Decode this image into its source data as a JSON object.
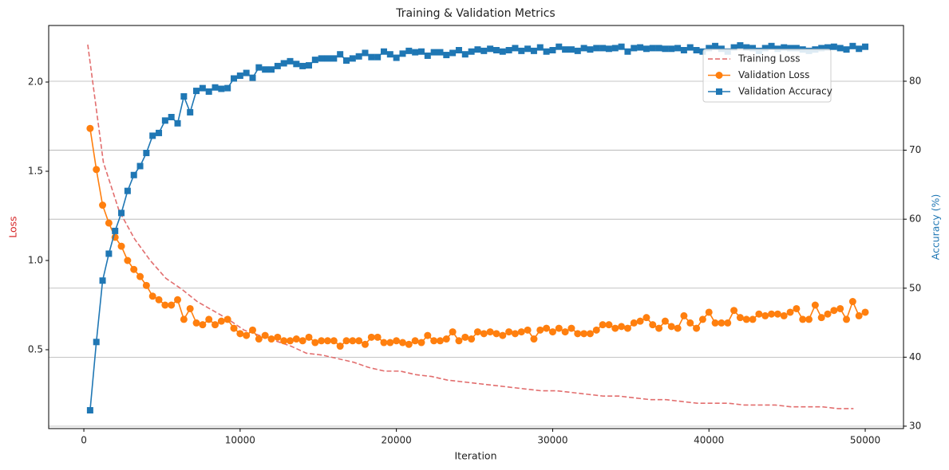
{
  "chart_data": {
    "type": "line",
    "title": "Training & Validation Metrics",
    "xlabel": "Iteration",
    "ylabel": "Loss",
    "y2label": "Accuracy (%)",
    "ylabel_color": "#d62728",
    "y2label_color": "#1f77b4",
    "xlim": [
      -2250,
      52450
    ],
    "xticks": [
      0,
      10000,
      20000,
      30000,
      40000,
      50000
    ],
    "ylim": [
      0.058,
      2.317
    ],
    "yticks": [
      0.5,
      {
        "value": 1,
        "label": "1.0"
      },
      1.5,
      {
        "value": 2,
        "label": "2.0"
      }
    ],
    "y2lim": [
      29.65,
      88.08
    ],
    "y2ticks": [
      30,
      40,
      50,
      60,
      70,
      80
    ],
    "grid": "y2",
    "legend_loc": "upper right",
    "series": [
      {
        "name": "Training Loss",
        "color": "#e06666",
        "linestyle": "dashed",
        "marker": "none",
        "axis": "y",
        "x": [
          250,
          1250,
          2250,
          3250,
          4250,
          5250,
          6250,
          7250,
          8250,
          9250,
          10250,
          11250,
          12250,
          13250,
          14250,
          15250,
          16250,
          17250,
          18250,
          19250,
          20250,
          21250,
          22250,
          23250,
          24250,
          25250,
          26250,
          27250,
          28250,
          29250,
          30250,
          31250,
          32250,
          33250,
          34250,
          35250,
          36250,
          37250,
          38250,
          39250,
          40250,
          41250,
          42250,
          43250,
          44250,
          45250,
          46250,
          47250,
          48250,
          49250
        ],
        "values": [
          2.21,
          1.55,
          1.28,
          1.12,
          1.0,
          0.9,
          0.84,
          0.77,
          0.72,
          0.67,
          0.61,
          0.58,
          0.55,
          0.52,
          0.48,
          0.47,
          0.45,
          0.43,
          0.4,
          0.38,
          0.38,
          0.36,
          0.35,
          0.33,
          0.32,
          0.31,
          0.3,
          0.29,
          0.28,
          0.27,
          0.27,
          0.26,
          0.25,
          0.24,
          0.24,
          0.23,
          0.22,
          0.22,
          0.21,
          0.2,
          0.2,
          0.2,
          0.19,
          0.19,
          0.19,
          0.18,
          0.18,
          0.18,
          0.17,
          0.17
        ]
      },
      {
        "name": "Validation Loss",
        "color": "#ff7f0e",
        "linestyle": "solid",
        "marker": "circle",
        "axis": "y",
        "x": [
          400,
          800,
          1200,
          1600,
          2000,
          2400,
          2800,
          3200,
          3600,
          4000,
          4400,
          4800,
          5200,
          5600,
          6000,
          6400,
          6800,
          7200,
          7600,
          8000,
          8400,
          8800,
          9200,
          9600,
          10000,
          10400,
          10800,
          11200,
          11600,
          12000,
          12400,
          12800,
          13200,
          13600,
          14000,
          14400,
          14800,
          15200,
          15600,
          16000,
          16400,
          16800,
          17200,
          17600,
          18000,
          18400,
          18800,
          19200,
          19600,
          20000,
          20400,
          20800,
          21200,
          21600,
          22000,
          22400,
          22800,
          23200,
          23600,
          24000,
          24400,
          24800,
          25200,
          25600,
          26000,
          26400,
          26800,
          27200,
          27600,
          28000,
          28400,
          28800,
          29200,
          29600,
          30000,
          30400,
          30800,
          31200,
          31600,
          32000,
          32400,
          32800,
          33200,
          33600,
          34000,
          34400,
          34800,
          35200,
          35600,
          36000,
          36400,
          36800,
          37200,
          37600,
          38000,
          38400,
          38800,
          39200,
          39600,
          40000,
          40400,
          40800,
          41200,
          41600,
          42000,
          42400,
          42800,
          43200,
          43600,
          44000,
          44400,
          44800,
          45200,
          45600,
          46000,
          46400,
          46800,
          47200,
          47600,
          48000,
          48400,
          48800,
          49200,
          49600,
          50000
        ],
        "values": [
          1.74,
          1.51,
          1.31,
          1.21,
          1.13,
          1.08,
          1.0,
          0.95,
          0.91,
          0.86,
          0.8,
          0.78,
          0.75,
          0.75,
          0.78,
          0.67,
          0.73,
          0.65,
          0.64,
          0.67,
          0.64,
          0.66,
          0.67,
          0.62,
          0.59,
          0.58,
          0.61,
          0.56,
          0.58,
          0.56,
          0.57,
          0.55,
          0.55,
          0.56,
          0.55,
          0.57,
          0.54,
          0.55,
          0.55,
          0.55,
          0.52,
          0.55,
          0.55,
          0.55,
          0.53,
          0.57,
          0.57,
          0.54,
          0.54,
          0.55,
          0.54,
          0.53,
          0.55,
          0.54,
          0.58,
          0.55,
          0.55,
          0.56,
          0.6,
          0.55,
          0.57,
          0.56,
          0.6,
          0.59,
          0.6,
          0.59,
          0.58,
          0.6,
          0.59,
          0.6,
          0.61,
          0.56,
          0.61,
          0.62,
          0.6,
          0.62,
          0.6,
          0.62,
          0.59,
          0.59,
          0.59,
          0.61,
          0.64,
          0.64,
          0.62,
          0.63,
          0.62,
          0.65,
          0.66,
          0.68,
          0.64,
          0.62,
          0.66,
          0.63,
          0.62,
          0.69,
          0.65,
          0.62,
          0.67,
          0.71,
          0.65,
          0.65,
          0.65,
          0.72,
          0.68,
          0.67,
          0.67,
          0.7,
          0.69,
          0.7,
          0.7,
          0.69,
          0.71,
          0.73,
          0.67,
          0.67,
          0.75,
          0.68,
          0.7,
          0.72,
          0.73,
          0.67,
          0.77,
          0.69,
          0.71
        ]
      },
      {
        "name": "Validation Accuracy",
        "color": "#1f77b4",
        "linestyle": "solid",
        "marker": "square",
        "axis": "y2",
        "x": [
          400,
          800,
          1200,
          1600,
          2000,
          2400,
          2800,
          3200,
          3600,
          4000,
          4400,
          4800,
          5200,
          5600,
          6000,
          6400,
          6800,
          7200,
          7600,
          8000,
          8400,
          8800,
          9200,
          9600,
          10000,
          10400,
          10800,
          11200,
          11600,
          12000,
          12400,
          12800,
          13200,
          13600,
          14000,
          14400,
          14800,
          15200,
          15600,
          16000,
          16400,
          16800,
          17200,
          17600,
          18000,
          18400,
          18800,
          19200,
          19600,
          20000,
          20400,
          20800,
          21200,
          21600,
          22000,
          22400,
          22800,
          23200,
          23600,
          24000,
          24400,
          24800,
          25200,
          25600,
          26000,
          26400,
          26800,
          27200,
          27600,
          28000,
          28400,
          28800,
          29200,
          29600,
          30000,
          30400,
          30800,
          31200,
          31600,
          32000,
          32400,
          32800,
          33200,
          33600,
          34000,
          34400,
          34800,
          35200,
          35600,
          36000,
          36400,
          36800,
          37200,
          37600,
          38000,
          38400,
          38800,
          39200,
          39600,
          40000,
          40400,
          40800,
          41200,
          41600,
          42000,
          42400,
          42800,
          43200,
          43600,
          44000,
          44400,
          44800,
          45200,
          45600,
          46000,
          46400,
          46800,
          47200,
          47600,
          48000,
          48400,
          48800,
          49200,
          49600,
          50000
        ],
        "values": [
          32.3,
          42.2,
          51.1,
          55.0,
          58.3,
          60.9,
          64.1,
          66.4,
          67.7,
          69.6,
          72.1,
          72.5,
          74.3,
          74.8,
          73.9,
          77.8,
          75.5,
          78.6,
          79.0,
          78.5,
          79.1,
          78.9,
          79.0,
          80.4,
          80.8,
          81.2,
          80.5,
          82.0,
          81.7,
          81.7,
          82.2,
          82.6,
          82.9,
          82.5,
          82.2,
          82.3,
          83.1,
          83.3,
          83.3,
          83.3,
          83.9,
          83.0,
          83.3,
          83.6,
          84.1,
          83.5,
          83.5,
          84.3,
          83.9,
          83.4,
          84.0,
          84.4,
          84.2,
          84.3,
          83.7,
          84.2,
          84.2,
          83.8,
          84.1,
          84.5,
          83.9,
          84.3,
          84.6,
          84.4,
          84.7,
          84.5,
          84.3,
          84.5,
          84.8,
          84.4,
          84.7,
          84.4,
          84.9,
          84.3,
          84.5,
          85.0,
          84.6,
          84.6,
          84.4,
          84.8,
          84.6,
          84.8,
          84.8,
          84.7,
          84.8,
          85.0,
          84.3,
          84.8,
          84.9,
          84.7,
          84.8,
          84.8,
          84.7,
          84.7,
          84.8,
          84.5,
          84.9,
          84.5,
          84.3,
          84.8,
          85.1,
          84.7,
          84.3,
          84.9,
          85.2,
          84.9,
          84.8,
          84.4,
          84.8,
          85.1,
          84.7,
          84.9,
          84.8,
          84.8,
          84.6,
          84.4,
          84.6,
          84.8,
          84.9,
          85.0,
          84.8,
          84.6,
          85.1,
          84.7,
          85.0
        ]
      }
    ]
  }
}
